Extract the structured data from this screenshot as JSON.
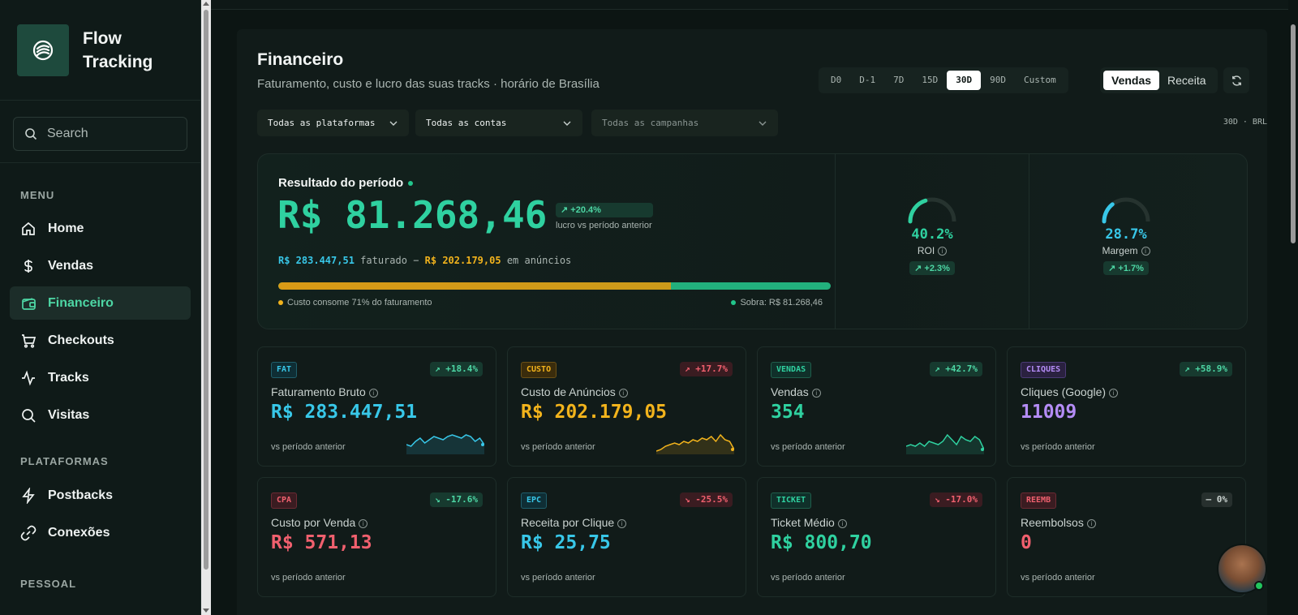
{
  "brand": {
    "name": "Flow Tracking"
  },
  "search": {
    "placeholder": "Search"
  },
  "sidebar": {
    "menu_label": "MENU",
    "items": [
      {
        "label": "Home",
        "icon": "home-icon"
      },
      {
        "label": "Vendas",
        "icon": "dollar-icon"
      },
      {
        "label": "Financeiro",
        "icon": "wallet-icon",
        "active": true
      },
      {
        "label": "Checkouts",
        "icon": "cart-icon"
      },
      {
        "label": "Tracks",
        "icon": "activity-icon"
      },
      {
        "label": "Visitas",
        "icon": "search-icon"
      }
    ],
    "platforms_label": "PLATAFORMAS",
    "platform_items": [
      {
        "label": "Postbacks",
        "icon": "zap-icon"
      },
      {
        "label": "Conexões",
        "icon": "link-icon"
      }
    ],
    "personal_label": "PESSOAL"
  },
  "page": {
    "title": "Financeiro",
    "subtitle": "Faturamento, custo e lucro das suas tracks · horário de Brasília"
  },
  "range": {
    "options": [
      "D0",
      "D-1",
      "7D",
      "15D",
      "30D",
      "90D",
      "Custom"
    ],
    "selected": "30D"
  },
  "mode": {
    "options": [
      "Vendas",
      "Receita"
    ],
    "selected": "Vendas"
  },
  "filters": {
    "platforms": "Todas as plataformas",
    "accounts": "Todas as contas",
    "campaigns": "Todas as campanhas",
    "currency_note": "30D · BRL"
  },
  "hero": {
    "label": "Resultado do período",
    "profit": "R$ 81.268,46",
    "delta": "+20.4%",
    "delta_sub": "lucro vs período anterior",
    "revenue": "R$ 283.447,51",
    "revenue_word": "faturado",
    "minus": "−",
    "cost": "R$ 202.179,05",
    "cost_word": "em anúncios",
    "cost_fraction": 0.71,
    "cost_note": "Custo consome 71% do faturamento",
    "left_note": "Sobra: R$ 81.268,46",
    "roi": {
      "value": "40.2%",
      "name": "ROI",
      "change": "+2.3%",
      "fraction": 0.402,
      "color": "#2fd1a0"
    },
    "margin": {
      "value": "28.7%",
      "name": "Margem",
      "change": "+1.7%",
      "fraction": 0.287,
      "color": "#38c7e8"
    }
  },
  "kpis": [
    {
      "tag": "FAT",
      "change": "+18.4%",
      "dir": "up",
      "title": "Faturamento Bruto",
      "value": "R$ 283.447,51",
      "foot": "vs período anterior",
      "color": "#38c7e8",
      "spark": true
    },
    {
      "tag": "CUSTO",
      "change": "+17.7%",
      "dir": "down",
      "title": "Custo de Anúncios",
      "value": "R$ 202.179,05",
      "foot": "vs período anterior",
      "color": "#f2b31c",
      "spark": true
    },
    {
      "tag": "VENDAS",
      "change": "+42.7%",
      "dir": "up",
      "title": "Vendas",
      "value": "354",
      "foot": "vs período anterior",
      "color": "#2fd1a0",
      "spark": true
    },
    {
      "tag": "CLIQUES",
      "change": "+58.9%",
      "dir": "up",
      "title": "Cliques (Google)",
      "value": "11009",
      "foot": "vs período anterior",
      "color": "#b48cf5",
      "spark": false
    },
    {
      "tag": "CPA",
      "change": "-17.6%",
      "dir": "up",
      "title": "Custo por Venda",
      "value": "R$ 571,13",
      "foot": "vs período anterior",
      "color": "#f0606e",
      "spark": false
    },
    {
      "tag": "EPC",
      "change": "-25.5%",
      "dir": "down",
      "title": "Receita por Clique",
      "value": "R$ 25,75",
      "foot": "vs período anterior",
      "color": "#38c7e8",
      "spark": false
    },
    {
      "tag": "TICKET",
      "change": "-17.0%",
      "dir": "down",
      "title": "Ticket Médio",
      "value": "R$ 800,70",
      "foot": "vs período anterior",
      "color": "#2fd1a0",
      "spark": false
    },
    {
      "tag": "REEMB",
      "change": "— 0%",
      "dir": "flat",
      "title": "Reembolsos",
      "value": "0",
      "foot": "vs período anterior",
      "color": "#f0606e",
      "spark": false
    }
  ]
}
